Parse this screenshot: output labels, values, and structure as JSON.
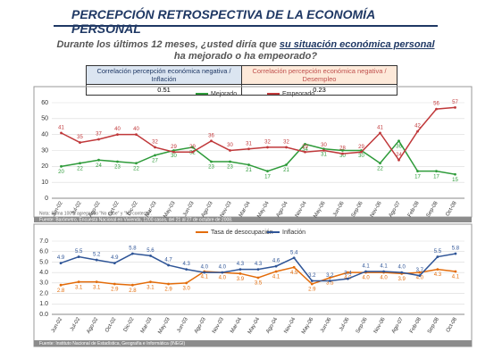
{
  "header": {
    "title": "PERCEPCIÓN RETROSPECTIVA DE LA ECONOMÍA PERSONAL",
    "subtitle": [
      "Durante los últimos 12 meses, ¿usted diría que ",
      "su situación económica personal",
      "ha mejorado o ha empeorado?"
    ]
  },
  "table": {
    "headers": [
      "Correlación percepción económica negativa / Inflación",
      "Correlación percepción económica negativa / Desempleo"
    ],
    "values": [
      "0.51",
      "0.23"
    ]
  },
  "chart_data": [
    {
      "type": "line",
      "note": "Nota: Suma 100% agregando \"No sabe\" y \"No contesta\".",
      "source": "Fuente: Barómetro, Encuesta Nacional en Vivienda, 1200 casos, del 21 al 27 de octubre de 2008.",
      "categories": [
        "Jun-02",
        "Jul-02",
        "Ago-02",
        "Oct-02",
        "Dic-02",
        "Mar-03",
        "May-03",
        "Jun-03",
        "Ago-03",
        "Nov-03",
        "Mar-04",
        "May-04",
        "Ago-04",
        "Nov-04",
        "May-06",
        "Jun-06",
        "Sep-06",
        "Nov-06",
        "Ago-07",
        "Feb-08",
        "Sep-08",
        "Oct-08"
      ],
      "series": [
        {
          "name": "Mejorado",
          "color": "#2e9b3a",
          "values": [
            20,
            22,
            24,
            23,
            22,
            27,
            30,
            32,
            23,
            23,
            21,
            17,
            21,
            34,
            31,
            30,
            30,
            22,
            36,
            17,
            17,
            15
          ]
        },
        {
          "name": "Empeorado",
          "color": "#c0383a",
          "values": [
            41,
            35,
            37,
            40,
            40,
            32,
            29,
            29,
            36,
            30,
            31,
            32,
            32,
            29,
            30,
            28,
            29,
            41,
            24,
            42,
            56,
            57
          ]
        }
      ],
      "ylim": [
        0,
        60
      ],
      "yticks": [
        0,
        10,
        20,
        30,
        40,
        50,
        60
      ],
      "grid": true
    },
    {
      "type": "line",
      "source": "Fuente: Instituto Nacional de Estadística, Geografía e Informática (INEGI)",
      "categories": [
        "Jun-02",
        "Jul-02",
        "Ago-02",
        "Oct-02",
        "Dic-02",
        "Mar-03",
        "May-03",
        "Jun-03",
        "Ago-03",
        "Nov-03",
        "Mar-04",
        "May-04",
        "Ago-04",
        "Nov-04",
        "May-06",
        "Jun-06",
        "Jul-06",
        "Sep-06",
        "Nov-06",
        "Ago-07",
        "Feb-08",
        "Sep-08",
        "Oct-08"
      ],
      "series": [
        {
          "name": "Tasa de desocupación",
          "color": "#e36c0a",
          "values": [
            2.8,
            3.1,
            3.1,
            2.9,
            2.8,
            3.1,
            2.9,
            3.0,
            4.1,
            4.0,
            3.9,
            3.5,
            4.1,
            4.5,
            2.9,
            3.5,
            4.0,
            4.0,
            4.0,
            3.9,
            4.0,
            4.3,
            4.1
          ],
          "value_labels": [
            "2.8",
            "3.1",
            "3.1",
            "2.9",
            "2.8",
            "3.1",
            "2.9",
            "3.0",
            "4.1",
            "4.0",
            "3.9",
            "3.5",
            "4.1",
            "4.5",
            "2.9",
            "3.5",
            "4.0",
            "4.0",
            "4.0",
            "3.9",
            "4.0",
            "4.3",
            "4.1"
          ]
        },
        {
          "name": "Inflación",
          "color": "#2f5597",
          "values": [
            4.9,
            5.5,
            5.2,
            4.9,
            5.8,
            5.6,
            4.7,
            4.3,
            4.0,
            4.0,
            4.3,
            4.3,
            4.6,
            5.4,
            3.2,
            3.2,
            3.4,
            4.1,
            4.1,
            4.0,
            3.7,
            5.5,
            5.8
          ],
          "value_labels": [
            "4.9",
            "5.5",
            "5.2",
            "4.9",
            "5.8",
            "5.6",
            "4.7",
            "4.3",
            "4.0",
            "4.0",
            "4.3",
            "4.3",
            "4.6",
            "5.4",
            "3.2",
            "3.2",
            "3.4",
            "4.1",
            "4.1",
            "4.0",
            "3.7",
            "5.5",
            "5.8"
          ]
        }
      ],
      "ylim": [
        0,
        7
      ],
      "yticks": [
        {
          "value": 0,
          "label": "0.0"
        },
        {
          "value": 1,
          "label": "1.0"
        },
        {
          "value": 2,
          "label": "2.0"
        },
        {
          "value": 3,
          "label": "3.0"
        },
        {
          "value": 4,
          "label": "4.0"
        },
        {
          "value": 5,
          "label": "5.0"
        },
        {
          "value": 6,
          "label": "6.0"
        },
        {
          "value": 7,
          "label": "7.0"
        }
      ],
      "grid": true
    }
  ]
}
